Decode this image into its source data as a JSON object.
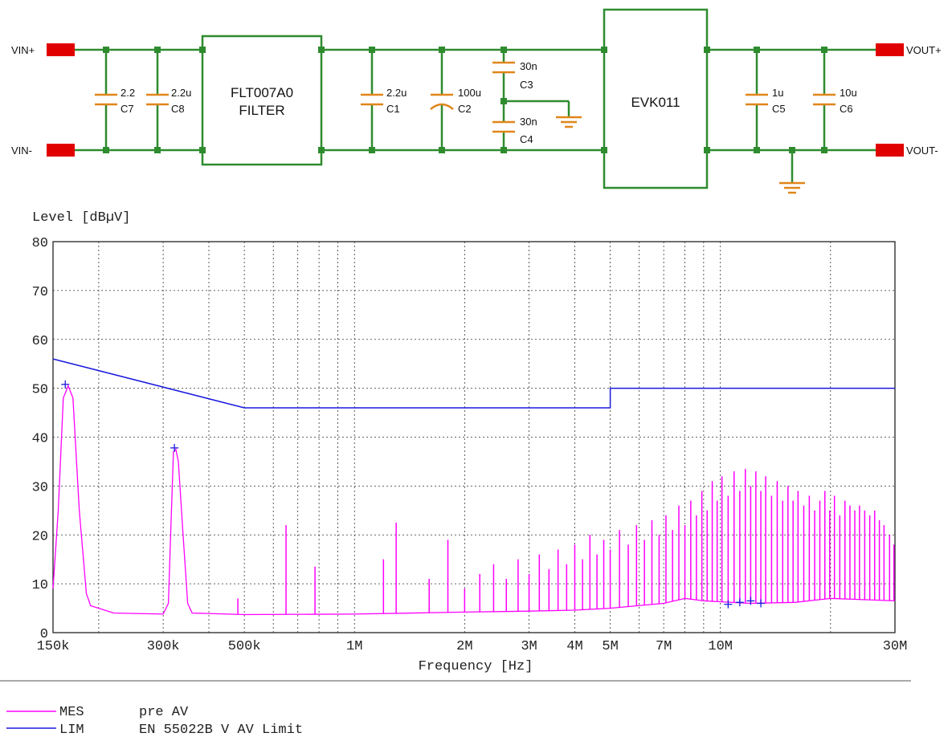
{
  "schematic": {
    "vin_plus": "VIN+",
    "vin_minus": "VIN-",
    "vout_plus": "VOUT+",
    "vout_minus": "VOUT-",
    "filter_name": "FLT007A0",
    "filter_label": "FILTER",
    "converter": "EVK011",
    "components": [
      {
        "ref": "C7",
        "value": "2.2"
      },
      {
        "ref": "C8",
        "value": "2.2u"
      },
      {
        "ref": "C1",
        "value": "2.2u"
      },
      {
        "ref": "C2",
        "value": "100u"
      },
      {
        "ref": "C3",
        "value": "30n"
      },
      {
        "ref": "C4",
        "value": "30n"
      },
      {
        "ref": "C5",
        "value": "1u"
      },
      {
        "ref": "C6",
        "value": "10u"
      }
    ],
    "colors": {
      "wire": "#2e8b2e",
      "terminal": "#e00000",
      "ground": "#e0861a"
    }
  },
  "chart_data": {
    "type": "line",
    "ylabel": "Level [dBµV]",
    "xlabel": "Frequency [Hz]",
    "x_scale": "log",
    "xlim": [
      150000,
      30000000
    ],
    "ylim": [
      0,
      80
    ],
    "y_ticks": [
      0,
      10,
      20,
      30,
      40,
      50,
      60,
      70,
      80
    ],
    "x_ticks": [
      {
        "value": 150000,
        "label": "150k"
      },
      {
        "value": 300000,
        "label": "300k"
      },
      {
        "value": 500000,
        "label": "500k"
      },
      {
        "value": 1000000,
        "label": "1M"
      },
      {
        "value": 2000000,
        "label": "2M"
      },
      {
        "value": 3000000,
        "label": "3M"
      },
      {
        "value": 4000000,
        "label": "4M"
      },
      {
        "value": 5000000,
        "label": "5M"
      },
      {
        "value": 7000000,
        "label": "7M"
      },
      {
        "value": 10000000,
        "label": "10M"
      },
      {
        "value": 30000000,
        "label": "30M"
      }
    ],
    "grid": true,
    "series": [
      {
        "name": "pre AV",
        "legend_code": "MES",
        "color": "#ff00ff",
        "baseline": [
          [
            150000,
            9
          ],
          [
            155000,
            25
          ],
          [
            160000,
            48
          ],
          [
            165000,
            50.5
          ],
          [
            170000,
            48
          ],
          [
            177000,
            25
          ],
          [
            185000,
            8
          ],
          [
            190000,
            5.5
          ],
          [
            220000,
            4
          ],
          [
            300000,
            3.8
          ],
          [
            310000,
            6
          ],
          [
            315000,
            22
          ],
          [
            320000,
            37
          ],
          [
            325000,
            37.5
          ],
          [
            330000,
            35
          ],
          [
            340000,
            20
          ],
          [
            350000,
            6
          ],
          [
            360000,
            4
          ],
          [
            500000,
            3.7
          ],
          [
            1000000,
            3.8
          ],
          [
            2000000,
            4.2
          ],
          [
            3000000,
            4.4
          ],
          [
            4000000,
            4.6
          ],
          [
            5000000,
            5
          ],
          [
            7000000,
            6
          ],
          [
            8000000,
            7
          ],
          [
            9000000,
            6.5
          ],
          [
            12000000,
            6
          ],
          [
            16000000,
            6.2
          ],
          [
            20000000,
            7
          ],
          [
            30000000,
            6.5
          ]
        ],
        "peaks": [
          [
            480000,
            7
          ],
          [
            650000,
            22
          ],
          [
            780000,
            13.5
          ],
          [
            1200000,
            15
          ],
          [
            1300000,
            22.5
          ],
          [
            1600000,
            11
          ],
          [
            1800000,
            19
          ],
          [
            2000000,
            9
          ],
          [
            2200000,
            12
          ],
          [
            2400000,
            14
          ],
          [
            2600000,
            11
          ],
          [
            2800000,
            15
          ],
          [
            3000000,
            12
          ],
          [
            3200000,
            16
          ],
          [
            3400000,
            13
          ],
          [
            3600000,
            17
          ],
          [
            3800000,
            14
          ],
          [
            4000000,
            18
          ],
          [
            4200000,
            15
          ],
          [
            4400000,
            20
          ],
          [
            4600000,
            16
          ],
          [
            4800000,
            19
          ],
          [
            5000000,
            17
          ],
          [
            5300000,
            21
          ],
          [
            5600000,
            18
          ],
          [
            5900000,
            22
          ],
          [
            6200000,
            19
          ],
          [
            6500000,
            23
          ],
          [
            6800000,
            20
          ],
          [
            7100000,
            24
          ],
          [
            7400000,
            21
          ],
          [
            7700000,
            26
          ],
          [
            8000000,
            22
          ],
          [
            8300000,
            27
          ],
          [
            8600000,
            24
          ],
          [
            8900000,
            29
          ],
          [
            9200000,
            25
          ],
          [
            9500000,
            31
          ],
          [
            9800000,
            27
          ],
          [
            10100000,
            32
          ],
          [
            10500000,
            28
          ],
          [
            10900000,
            33
          ],
          [
            11300000,
            29
          ],
          [
            11700000,
            33.5
          ],
          [
            12100000,
            30
          ],
          [
            12500000,
            33
          ],
          [
            12900000,
            29
          ],
          [
            13300000,
            32
          ],
          [
            13800000,
            28
          ],
          [
            14300000,
            31
          ],
          [
            14800000,
            27
          ],
          [
            15300000,
            30
          ],
          [
            15800000,
            27
          ],
          [
            16300000,
            29
          ],
          [
            16900000,
            26
          ],
          [
            17500000,
            28
          ],
          [
            18100000,
            25
          ],
          [
            18700000,
            27
          ],
          [
            19300000,
            29
          ],
          [
            19900000,
            25
          ],
          [
            20500000,
            28
          ],
          [
            21200000,
            24
          ],
          [
            21900000,
            27
          ],
          [
            22600000,
            26
          ],
          [
            23300000,
            25
          ],
          [
            24000000,
            26
          ],
          [
            24800000,
            25
          ],
          [
            25600000,
            24
          ],
          [
            26400000,
            25
          ],
          [
            27200000,
            23
          ],
          [
            28000000,
            22
          ],
          [
            29000000,
            20
          ],
          [
            29800000,
            18
          ]
        ],
        "markers": [
          [
            162000,
            50.8
          ],
          [
            322000,
            37.8
          ],
          [
            10500000,
            5.8
          ],
          [
            11300000,
            6.2
          ],
          [
            12100000,
            6.5
          ],
          [
            12900000,
            6.0
          ]
        ]
      },
      {
        "name": "EN 55022B V AV Limit",
        "legend_code": "LIM",
        "color": "#1a1adc",
        "points": [
          [
            150000,
            56
          ],
          [
            500000,
            46
          ],
          [
            5000000,
            46
          ],
          [
            5000000,
            50
          ],
          [
            30000000,
            50
          ]
        ]
      }
    ],
    "legend_position": "bottom-left"
  }
}
